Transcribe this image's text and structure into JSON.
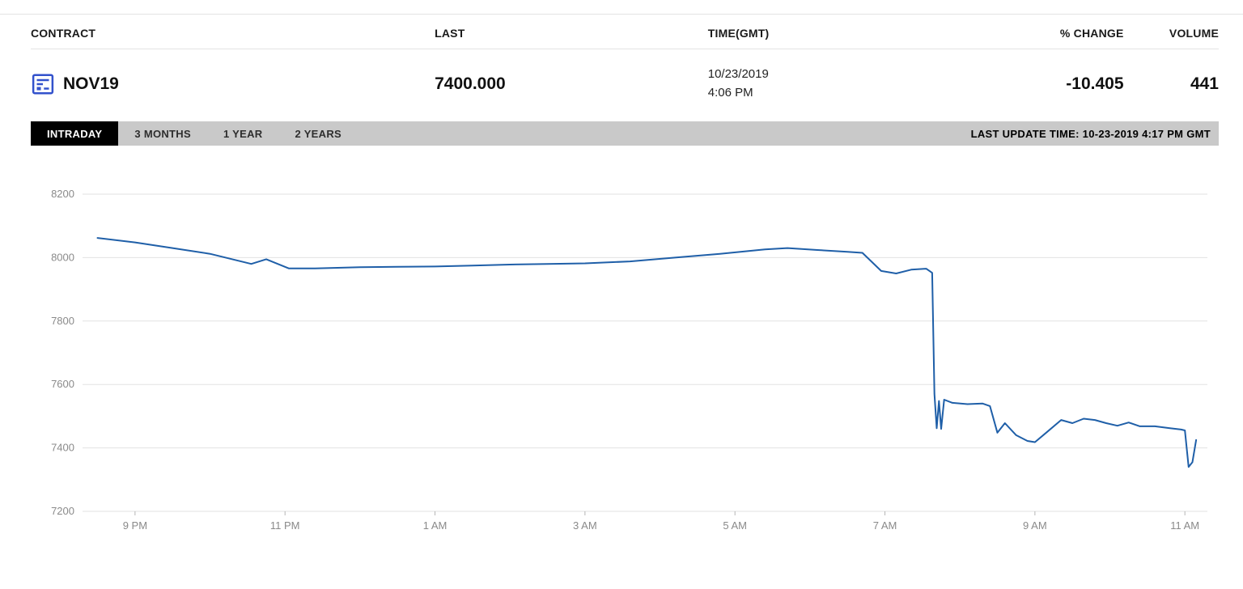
{
  "quote": {
    "columns": [
      "CONTRACT",
      "LAST",
      "TIME(GMT)",
      "% CHANGE",
      "VOLUME"
    ],
    "contract": "NOV19",
    "last": "7400.000",
    "date": "10/23/2019",
    "time": "4:06 PM",
    "percent_change": "-10.405",
    "volume": "441"
  },
  "tabs": {
    "items": [
      {
        "label": "INTRADAY",
        "active": true
      },
      {
        "label": "3 MONTHS",
        "active": false
      },
      {
        "label": "1 YEAR",
        "active": false
      },
      {
        "label": "2 YEARS",
        "active": false
      }
    ],
    "last_update": "LAST UPDATE TIME: 10-23-2019 4:17 PM GMT"
  },
  "chart_data": {
    "type": "line",
    "title": "",
    "xlabel": "",
    "ylabel": "",
    "ylim": [
      7200,
      8200
    ],
    "xlim": [
      20.3,
      35.3
    ],
    "grid": "horizontal-only",
    "legend": "none",
    "grid_color": "#e2e2e2",
    "axis_label_color": "#8a8a8a",
    "y_ticks": [
      7200,
      7400,
      7600,
      7800,
      8000,
      8200
    ],
    "x_ticks": [
      {
        "t": 21,
        "label": "9 PM"
      },
      {
        "t": 23,
        "label": "11 PM"
      },
      {
        "t": 25,
        "label": "1 AM"
      },
      {
        "t": 27,
        "label": "3 AM"
      },
      {
        "t": 29,
        "label": "5 AM"
      },
      {
        "t": 31,
        "label": "7 AM"
      },
      {
        "t": 33,
        "label": "9 AM"
      },
      {
        "t": 35,
        "label": "11 AM"
      }
    ],
    "x_unit": "decimal hours GMT; 21 = 9 PM, 35 = 11 AM next day",
    "series": [
      {
        "name": "NOV19",
        "color": "#1f5fa8",
        "points": [
          [
            20.5,
            8062
          ],
          [
            21.0,
            8048
          ],
          [
            21.5,
            8030
          ],
          [
            22.0,
            8012
          ],
          [
            22.55,
            7980
          ],
          [
            22.75,
            7995
          ],
          [
            23.05,
            7966
          ],
          [
            23.4,
            7966
          ],
          [
            24.0,
            7970
          ],
          [
            24.5,
            7971
          ],
          [
            25.0,
            7972
          ],
          [
            25.5,
            7975
          ],
          [
            26.0,
            7978
          ],
          [
            26.5,
            7980
          ],
          [
            27.0,
            7982
          ],
          [
            27.6,
            7988
          ],
          [
            28.2,
            8000
          ],
          [
            28.8,
            8012
          ],
          [
            29.4,
            8026
          ],
          [
            29.7,
            8030
          ],
          [
            30.1,
            8024
          ],
          [
            30.5,
            8018
          ],
          [
            30.7,
            8015
          ],
          [
            30.95,
            7958
          ],
          [
            31.15,
            7950
          ],
          [
            31.35,
            7962
          ],
          [
            31.55,
            7965
          ],
          [
            31.63,
            7952
          ],
          [
            31.66,
            7570
          ],
          [
            31.69,
            7462
          ],
          [
            31.72,
            7548
          ],
          [
            31.75,
            7460
          ],
          [
            31.79,
            7552
          ],
          [
            31.9,
            7542
          ],
          [
            32.1,
            7538
          ],
          [
            32.3,
            7540
          ],
          [
            32.4,
            7532
          ],
          [
            32.5,
            7448
          ],
          [
            32.6,
            7478
          ],
          [
            32.75,
            7440
          ],
          [
            32.9,
            7422
          ],
          [
            33.0,
            7418
          ],
          [
            33.15,
            7448
          ],
          [
            33.35,
            7488
          ],
          [
            33.5,
            7478
          ],
          [
            33.65,
            7492
          ],
          [
            33.8,
            7488
          ],
          [
            33.95,
            7478
          ],
          [
            34.1,
            7470
          ],
          [
            34.25,
            7480
          ],
          [
            34.4,
            7468
          ],
          [
            34.6,
            7468
          ],
          [
            34.8,
            7462
          ],
          [
            34.95,
            7458
          ],
          [
            35.0,
            7455
          ],
          [
            35.05,
            7340
          ],
          [
            35.1,
            7355
          ],
          [
            35.15,
            7425
          ]
        ]
      }
    ]
  }
}
